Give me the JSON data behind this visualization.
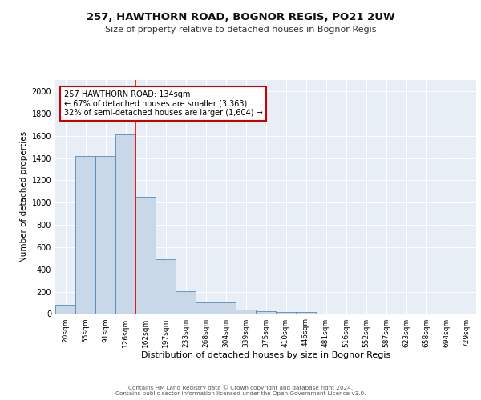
{
  "title": "257, HAWTHORN ROAD, BOGNOR REGIS, PO21 2UW",
  "subtitle": "Size of property relative to detached houses in Bognor Regis",
  "xlabel": "Distribution of detached houses by size in Bognor Regis",
  "ylabel": "Number of detached properties",
  "categories": [
    "20sqm",
    "55sqm",
    "91sqm",
    "126sqm",
    "162sqm",
    "197sqm",
    "233sqm",
    "268sqm",
    "304sqm",
    "339sqm",
    "375sqm",
    "410sqm",
    "446sqm",
    "481sqm",
    "516sqm",
    "552sqm",
    "587sqm",
    "623sqm",
    "658sqm",
    "694sqm",
    "729sqm"
  ],
  "values": [
    80,
    1420,
    1420,
    1610,
    1050,
    490,
    205,
    105,
    105,
    40,
    25,
    20,
    20,
    0,
    0,
    0,
    0,
    0,
    0,
    0,
    0
  ],
  "bar_color": "#c8d8e8",
  "bar_edge_color": "#5588bb",
  "red_line_x": 3.5,
  "annotation_text": "257 HAWTHORN ROAD: 134sqm\n← 67% of detached houses are smaller (3,363)\n32% of semi-detached houses are larger (1,604) →",
  "annotation_box_color": "#ffffff",
  "annotation_box_edge": "#cc0000",
  "footer": "Contains HM Land Registry data © Crown copyright and database right 2024.\nContains public sector information licensed under the Open Government Licence v3.0.",
  "background_color": "#e8eef5",
  "ylim": [
    0,
    2100
  ],
  "yticks": [
    0,
    200,
    400,
    600,
    800,
    1000,
    1200,
    1400,
    1600,
    1800,
    2000
  ]
}
